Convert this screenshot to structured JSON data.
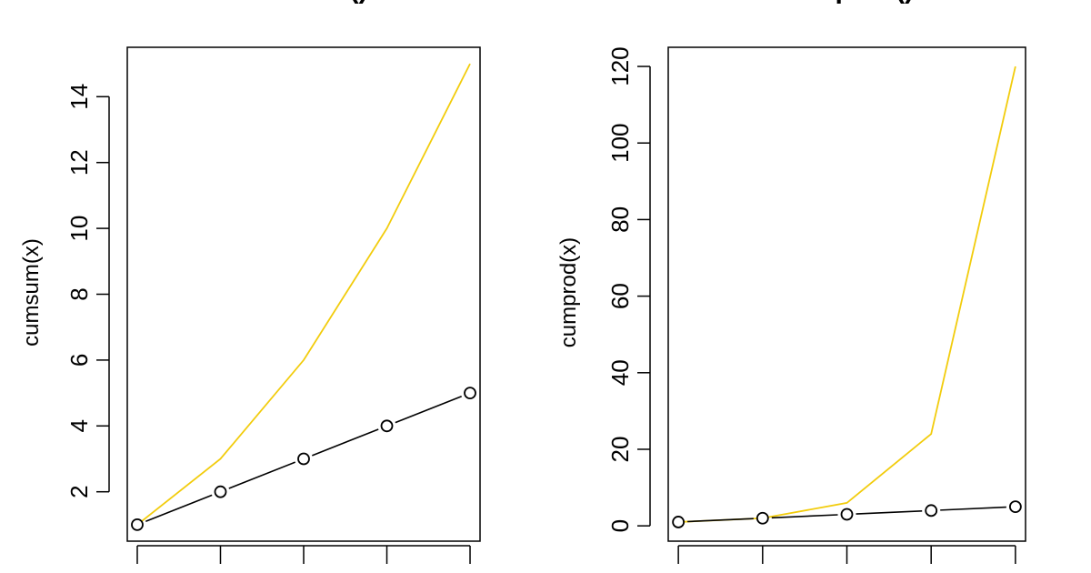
{
  "chart_data": [
    {
      "type": "line",
      "title": "cumsum()",
      "xlabel": "",
      "ylabel": "cumsum(x)",
      "xlim": [
        0.88,
        5.12
      ],
      "ylim": [
        0.5,
        15.5
      ],
      "x": [
        1,
        2,
        3,
        4,
        5
      ],
      "y_ticks": [
        2,
        4,
        6,
        8,
        10,
        12,
        14
      ],
      "grid": false,
      "series": [
        {
          "values": [
            1,
            3,
            6,
            10,
            15
          ],
          "color": "#f2cc0c",
          "style": "line"
        },
        {
          "values": [
            1,
            2,
            3,
            4,
            5
          ],
          "color": "#000000",
          "style": "both"
        }
      ]
    },
    {
      "type": "line",
      "title": "cumprod()",
      "xlabel": "",
      "ylabel": "cumprod(x)",
      "xlim": [
        0.88,
        5.12
      ],
      "ylim": [
        -4,
        125
      ],
      "x": [
        1,
        2,
        3,
        4,
        5
      ],
      "y_ticks": [
        0,
        20,
        40,
        60,
        80,
        100,
        120
      ],
      "grid": false,
      "series": [
        {
          "values": [
            1,
            2,
            6,
            24,
            120
          ],
          "color": "#f2cc0c",
          "style": "line"
        },
        {
          "values": [
            1,
            2,
            3,
            4,
            5
          ],
          "color": "#000000",
          "style": "both"
        }
      ]
    }
  ]
}
